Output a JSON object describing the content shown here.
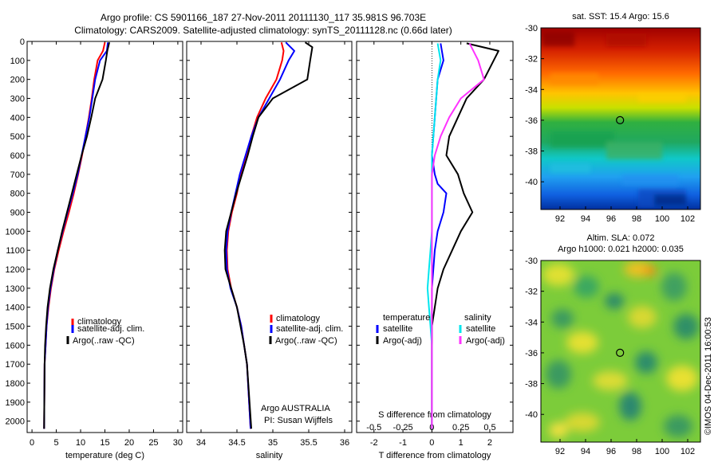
{
  "header": {
    "title_line1": "Argo profile: CS 5901166_187 27-Nov-2011 20111130_117 35.981S 96.703E",
    "title_line2": "Climatology: CARS2009. Satellite-adjusted climatology: synTS_20111128.nc (0.66d later)"
  },
  "side_label": "©IMOS 04-Dec-2011 16:00:53",
  "colors": {
    "climatology": "#ff0000",
    "satellite": "#0000ff",
    "argo": "#000000",
    "sal_satellite": "#00e5ee",
    "sal_argo": "#ff33ff"
  },
  "chart_data": [
    {
      "type": "line",
      "name": "temperature-panel",
      "xlabel": "temperature (deg C)",
      "ylabel": "",
      "xlim": [
        -1,
        31
      ],
      "ylim": [
        2060,
        0
      ],
      "xticks": [
        "0",
        "5",
        "10",
        "15",
        "20",
        "25",
        "30"
      ],
      "yticks": [
        "0",
        "100",
        "200",
        "300",
        "400",
        "500",
        "600",
        "700",
        "800",
        "900",
        "1000",
        "1100",
        "1200",
        "1300",
        "1400",
        "1500",
        "1600",
        "1700",
        "1800",
        "1900",
        "2000"
      ],
      "legend": [
        "climatology",
        "satellite-adj. clim.",
        "Argo(..raw -QC)"
      ],
      "series": [
        {
          "name": "climatology",
          "color": "#ff0000",
          "x": [
            15.0,
            14.6,
            13.5,
            12.8,
            12.3,
            11.7,
            11.0,
            10.3,
            9.5,
            8.6,
            7.6,
            6.5,
            5.5,
            4.6,
            3.9,
            3.4,
            3.0,
            2.8,
            2.6,
            2.5
          ],
          "y": [
            5,
            50,
            100,
            200,
            300,
            400,
            500,
            600,
            700,
            800,
            900,
            1000,
            1100,
            1200,
            1300,
            1400,
            1500,
            1600,
            1700,
            2040
          ]
        },
        {
          "name": "satellite-adj. clim.",
          "color": "#0000ff",
          "x": [
            15.6,
            15.4,
            14.0,
            13.0,
            12.4,
            11.8,
            11.0,
            10.2,
            9.4,
            8.4,
            7.3,
            6.3,
            5.3,
            4.5,
            3.8,
            3.3,
            3.0,
            2.8,
            2.6,
            2.5
          ],
          "y": [
            5,
            50,
            100,
            200,
            300,
            400,
            500,
            600,
            700,
            800,
            900,
            1000,
            1100,
            1200,
            1300,
            1400,
            1500,
            1600,
            1700,
            2040
          ]
        },
        {
          "name": "Argo(..raw -QC)",
          "color": "#000000",
          "x": [
            15.9,
            15.5,
            15.2,
            14.5,
            13.0,
            12.2,
            11.3,
            10.2,
            9.2,
            8.2,
            7.2,
            6.2,
            5.3,
            4.4,
            3.7,
            3.2,
            2.9,
            2.7,
            2.6,
            2.5
          ],
          "y": [
            5,
            50,
            100,
            200,
            300,
            400,
            500,
            600,
            700,
            800,
            900,
            1000,
            1100,
            1200,
            1300,
            1400,
            1500,
            1600,
            1700,
            2040
          ]
        }
      ]
    },
    {
      "type": "line",
      "name": "salinity-panel",
      "xlabel": "salinity",
      "xlim": [
        33.8,
        36.1
      ],
      "ylim": [
        2060,
        0
      ],
      "xticks": [
        "34",
        "34.5",
        "35",
        "35.5",
        "36"
      ],
      "legend": [
        "climatology",
        "satellite-adj. clim.",
        "Argo(..raw -QC)"
      ],
      "annotation": [
        "Argo AUSTRALIA",
        "PI: Susan Wijffels"
      ],
      "series": [
        {
          "name": "climatology",
          "color": "#ff0000",
          "x": [
            35.12,
            35.15,
            35.13,
            35.05,
            34.9,
            34.78,
            34.7,
            34.63,
            34.55,
            34.5,
            34.43,
            34.38,
            34.36,
            34.37,
            34.42,
            34.5,
            34.56,
            34.6,
            34.64,
            34.69
          ],
          "y": [
            5,
            50,
            100,
            200,
            300,
            400,
            500,
            600,
            700,
            800,
            900,
            1000,
            1100,
            1200,
            1300,
            1400,
            1500,
            1600,
            1700,
            2040
          ]
        },
        {
          "name": "satellite-adj. clim.",
          "color": "#0000ff",
          "x": [
            35.18,
            35.3,
            35.22,
            35.1,
            34.95,
            34.8,
            34.7,
            34.62,
            34.54,
            34.48,
            34.42,
            34.37,
            34.35,
            34.36,
            34.41,
            34.5,
            34.56,
            34.6,
            34.64,
            34.69
          ],
          "y": [
            5,
            50,
            100,
            200,
            300,
            400,
            500,
            600,
            700,
            800,
            900,
            1000,
            1100,
            1200,
            1300,
            1400,
            1500,
            1600,
            1700,
            2040
          ]
        },
        {
          "name": "Argo(..raw -QC)",
          "color": "#000000",
          "x": [
            35.45,
            35.55,
            35.52,
            35.48,
            35.0,
            34.8,
            34.72,
            34.65,
            34.57,
            34.49,
            34.42,
            34.35,
            34.33,
            34.34,
            34.42,
            34.5,
            34.55,
            34.6,
            34.64,
            34.7
          ],
          "y": [
            5,
            30,
            100,
            200,
            300,
            400,
            500,
            600,
            700,
            800,
            900,
            1000,
            1100,
            1200,
            1300,
            1400,
            1500,
            1600,
            1700,
            2040
          ]
        }
      ]
    },
    {
      "type": "line",
      "name": "difference-panel",
      "xlabel": "T difference from climatology",
      "top_xlabel": "S difference from climatology",
      "xlim": [
        -2.6,
        2.8
      ],
      "ylim": [
        2060,
        0
      ],
      "xticks": [
        "-2",
        "-1",
        "0",
        "1",
        "2"
      ],
      "top_xticks": [
        "-0.5",
        "-0.25",
        "0",
        "0.25",
        "0.5"
      ],
      "legend_temperature": {
        "heading": "temperature",
        "items": [
          "satellite",
          "Argo(-adj)"
        ]
      },
      "legend_salinity": {
        "heading": "salinity",
        "items": [
          "satellite",
          "Argo(-adj)"
        ]
      },
      "series": [
        {
          "name": "temperature satellite",
          "color": "#0000ff",
          "x": [
            0.3,
            0.4,
            0.2,
            0.1,
            0.05,
            0.0,
            0.1,
            0.2,
            0.5,
            0.4,
            0.2,
            0.1,
            0.05,
            0.0,
            0.0,
            0.0,
            0.0,
            0.0,
            0.0
          ],
          "y": [
            10,
            100,
            200,
            400,
            500,
            600,
            700,
            750,
            800,
            900,
            1000,
            1100,
            1200,
            1300,
            1400,
            1500,
            1600,
            1700,
            2040
          ]
        },
        {
          "name": "temperature Argo(-adj)",
          "color": "#000000",
          "x": [
            1.2,
            2.3,
            1.8,
            1.2,
            0.9,
            0.6,
            0.5,
            0.9,
            1.1,
            1.4,
            1.0,
            0.7,
            0.4,
            0.2,
            0.1,
            0.0,
            0.0,
            0.0,
            0.0
          ],
          "y": [
            10,
            50,
            200,
            300,
            400,
            500,
            600,
            700,
            800,
            900,
            1000,
            1100,
            1200,
            1300,
            1400,
            1500,
            1600,
            1700,
            2040
          ]
        },
        {
          "name": "salinity satellite",
          "color": "#00e5ee",
          "x": [
            0.2,
            0.3,
            0.2,
            0.1,
            0.05,
            0.0,
            0.0,
            0.0,
            0.0,
            0.0,
            -0.05,
            -0.1,
            -0.15,
            -0.1,
            -0.05,
            0.0,
            0.0,
            0.0
          ],
          "y": [
            10,
            100,
            200,
            400,
            500,
            600,
            700,
            800,
            900,
            1000,
            1100,
            1200,
            1300,
            1400,
            1500,
            1600,
            1700,
            2040
          ]
        },
        {
          "name": "salinity Argo(-adj)",
          "color": "#ff33ff",
          "x": [
            1.3,
            1.6,
            1.8,
            1.0,
            0.6,
            0.3,
            0.1,
            0.0,
            0.0,
            0.0,
            0.0,
            0.0,
            0.0,
            0.0,
            0.0,
            0.0,
            0.0
          ],
          "y": [
            10,
            100,
            200,
            300,
            400,
            500,
            600,
            700,
            800,
            900,
            1000,
            1200,
            1400,
            1600,
            1700,
            1900,
            2040
          ]
        }
      ]
    },
    {
      "type": "heatmap",
      "name": "sst-map",
      "title": "sat. SST: 15.4 Argo: 15.6",
      "xlim": [
        90.5,
        103
      ],
      "ylim": [
        -41.8,
        -30
      ],
      "xticks": [
        "92",
        "94",
        "96",
        "98",
        "100",
        "102"
      ],
      "yticks": [
        "-30",
        "-32",
        "-34",
        "-36",
        "-38",
        "-40"
      ],
      "marker": {
        "lon": 96.7,
        "lat": -36.0
      }
    },
    {
      "type": "heatmap",
      "name": "sla-map",
      "title_line1": "Altim. SLA: 0.072",
      "title_line2": "Argo h1000: 0.021 h2000: 0.035",
      "xlim": [
        90.5,
        103
      ],
      "ylim": [
        -41.8,
        -30
      ],
      "xticks": [
        "92",
        "94",
        "96",
        "98",
        "100",
        "102"
      ],
      "yticks": [
        "-30",
        "-32",
        "-34",
        "-36",
        "-38",
        "-40"
      ],
      "marker": {
        "lon": 96.7,
        "lat": -36.0
      }
    }
  ]
}
